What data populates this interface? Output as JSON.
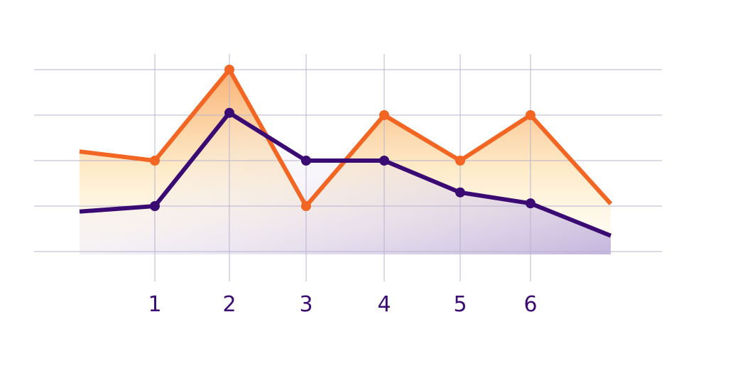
{
  "chart_data": {
    "type": "line",
    "title": "",
    "xlabel": "",
    "ylabel": "",
    "x": [
      0,
      1,
      2,
      3,
      4,
      5,
      6,
      7
    ],
    "x_tick_labels": [
      "1",
      "2",
      "3",
      "4",
      "5",
      "6"
    ],
    "xlim": [
      0,
      7
    ],
    "ylim": [
      0,
      4
    ],
    "y_gridlines": [
      0,
      1,
      2,
      3,
      4
    ],
    "grid": true,
    "legend": "none",
    "series": [
      {
        "color": "#f26522",
        "values": [
          2.2,
          2.0,
          4.0,
          1.0,
          3.0,
          2.0,
          3.0,
          1.05
        ]
      },
      {
        "color": "#3a0b72",
        "values": [
          0.88,
          1.0,
          3.05,
          2.0,
          2.0,
          1.3,
          1.06,
          0.35
        ]
      }
    ],
    "markers": [
      {
        "series": 0,
        "x_index": [
          1,
          2,
          3,
          4,
          5,
          6
        ]
      },
      {
        "series": 1,
        "x_index": [
          1,
          2,
          3,
          4,
          5,
          6
        ]
      }
    ],
    "colors": {
      "grid": "#b7b4cf",
      "orange_fill_top": "#f9a45c",
      "orange_fill_bottom": "#fffbe0",
      "purple_fill": "#cbbde2"
    }
  }
}
